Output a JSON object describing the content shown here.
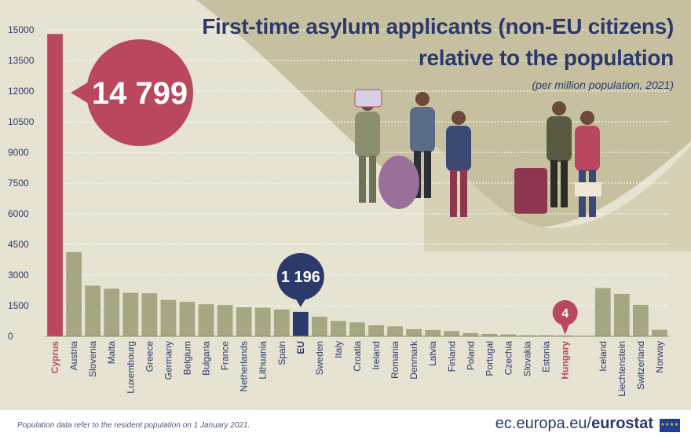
{
  "title": {
    "line1": "First-time asylum applicants (non-EU citizens)",
    "line2": "relative to the population",
    "subtitle": "(per million population, 2021)"
  },
  "footer": {
    "note": "Population data refer to the resident population on 1 January 2021.",
    "brand_prefix": "ec.europa.eu/",
    "brand_name": "eurostat"
  },
  "colors": {
    "background": "#e6e3d2",
    "curve_fill": "#c6c0a0",
    "bar_default": "#a6a682",
    "bar_highlight": "#b9485e",
    "bar_eu": "#2c3a6b",
    "grid": "#ffffff",
    "axis_text": "#2c3a6b"
  },
  "chart_data": {
    "type": "bar",
    "title": "First-time asylum applicants (non-EU citizens) relative to the population",
    "subtitle": "(per million population, 2021)",
    "xlabel": "",
    "ylabel": "",
    "ylim": [
      0,
      15000
    ],
    "yticks": [
      0,
      1500,
      3000,
      4500,
      6000,
      7500,
      9000,
      10500,
      12000,
      13500,
      15000
    ],
    "grid": true,
    "categories": [
      "Cyprus",
      "Austria",
      "Slovenia",
      "Malta",
      "Luxembourg",
      "Greece",
      "Germany",
      "Belgium",
      "Bulgaria",
      "France",
      "Netherlands",
      "Lithuania",
      "Spain",
      "EU",
      "Sweden",
      "Italy",
      "Croatia",
      "Ireland",
      "Romania",
      "Denmark",
      "Latvia",
      "Finland",
      "Poland",
      "Portugal",
      "Czechia",
      "Slovakia",
      "Estonia",
      "Hungary",
      "",
      "Iceland",
      "Liechtenstein",
      "Switzerland",
      "Norway"
    ],
    "values": [
      14799,
      4120,
      2480,
      2330,
      2130,
      2110,
      1780,
      1690,
      1570,
      1530,
      1420,
      1400,
      1310,
      1196,
      960,
      750,
      680,
      540,
      490,
      350,
      310,
      260,
      160,
      120,
      90,
      50,
      50,
      4,
      null,
      2360,
      2080,
      1540,
      320
    ],
    "highlight": {
      "Cyprus": {
        "style": "highlight",
        "callout": "14 799"
      },
      "EU": {
        "style": "eu",
        "callout": "1 196"
      },
      "Hungary": {
        "style": "highlight",
        "callout": "4"
      }
    }
  }
}
